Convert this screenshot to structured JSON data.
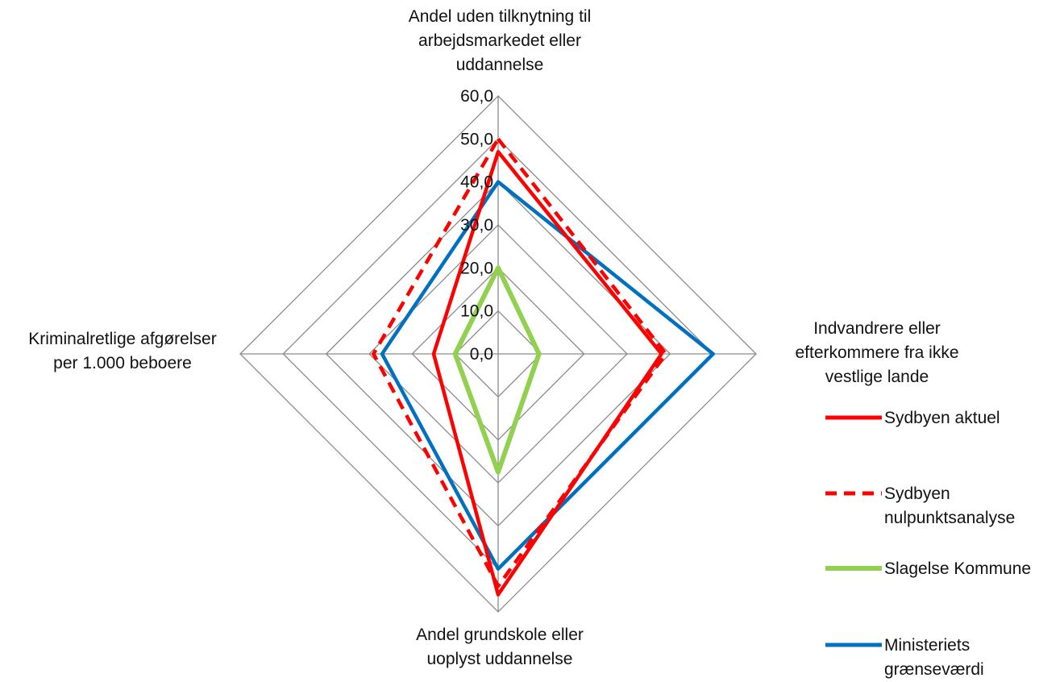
{
  "chart_data": {
    "type": "radar",
    "axes": [
      "Andel uden tilknytning til arbejdsmarkedet eller uddannelse",
      "Indvandrere eller efterkommere fra ikke vestlige lande",
      "Andel grundskole eller uoplyst uddannelse",
      "Kriminalretlige afgørelser per 1.000 beboere"
    ],
    "axis_label_lines": [
      [
        "Andel uden tilknytning til",
        "arbejdsmarkedet eller",
        "uddannelse"
      ],
      [
        "Indvandrere eller",
        "efterkommere fra ikke",
        "vestlige lande"
      ],
      [
        "Andel grundskole eller",
        "uoplyst uddannelse"
      ],
      [
        "Kriminalretlige afgørelser",
        "per 1.000 beboere"
      ]
    ],
    "ticks": [
      "0,0",
      "10,0",
      "20,0",
      "30,0",
      "40,0",
      "50,0",
      "60,0"
    ],
    "tick_values": [
      0,
      10,
      20,
      30,
      40,
      50,
      60
    ],
    "range": [
      0,
      60
    ],
    "series": [
      {
        "name": "Sydbyen aktuel",
        "legend_lines": [
          "Sydbyen aktuel"
        ],
        "values": [
          47,
          38,
          56,
          15
        ],
        "color": "#ff0000",
        "dash": false
      },
      {
        "name": "Sydbyen nulpunktsanalyse",
        "legend_lines": [
          "Sydbyen",
          "nulpunktsanalyse"
        ],
        "values": [
          50,
          39,
          54,
          29
        ],
        "color": "#ff0000",
        "dash": true
      },
      {
        "name": "Slagelse Kommune",
        "legend_lines": [
          "Slagelse Kommune"
        ],
        "values": [
          20,
          9.5,
          27.5,
          10
        ],
        "color": "#92d050",
        "dash": false
      },
      {
        "name": "Ministeriets grænseværdi",
        "legend_lines": [
          "Ministeriets",
          "grænseværdi"
        ],
        "values": [
          40,
          50,
          50,
          27
        ],
        "color": "#0070c0",
        "dash": false
      }
    ],
    "grid": true,
    "legend": "right"
  }
}
